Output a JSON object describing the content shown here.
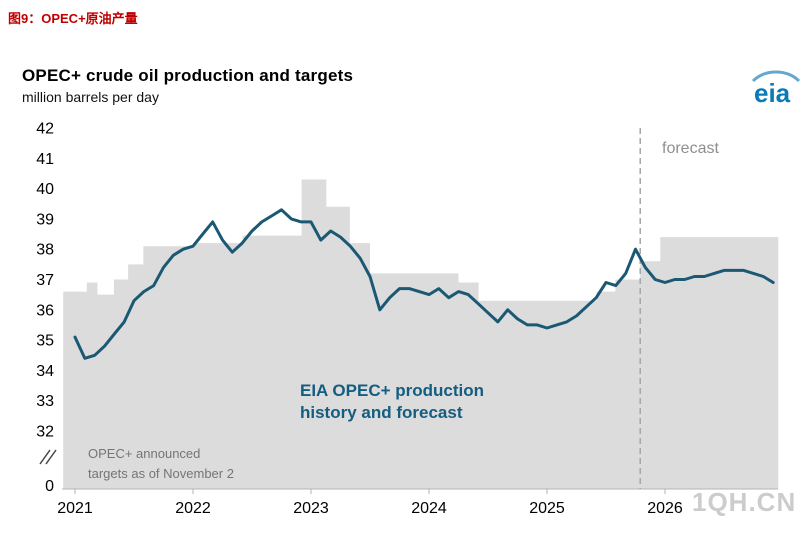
{
  "page": {
    "header": "图9：OPEC+原油产量",
    "watermark": "1QH.CN"
  },
  "branding": {
    "logo_text": "eia"
  },
  "colors": {
    "header_red": "#c00000",
    "production_line": "#1b5873",
    "targets_area": "#dcdcdc",
    "annotation_production": "#135d80",
    "annotation_targets": "#757575",
    "forecast_line": "#a6a6a6",
    "forecast_label": "#8f8f8f",
    "axis": "#b3b3b3",
    "tick_text": "#000000",
    "logo_blue": "#0a7ab8",
    "logo_swoosh": "#63a8cf",
    "watermark": "#cccccc"
  },
  "chart_data": {
    "type": "line",
    "title": "OPEC+ crude oil production and targets",
    "subtitle_unit": "million barrels per day",
    "xlabel": "",
    "ylabel": "million barrels per day",
    "x_ticks": [
      2021,
      2022,
      2023,
      2024,
      2025,
      2026
    ],
    "y_ticks": [
      42,
      41,
      40,
      39,
      38,
      37,
      36,
      35,
      34,
      33,
      32
    ],
    "y_break_label": "0",
    "ylim": [
      32,
      42
    ],
    "xlim": [
      2020.9,
      2026.96
    ],
    "grid": false,
    "legend": "none (in-chart annotations)",
    "forecast_start_x": 2025.79,
    "annotations": {
      "forecast": "forecast",
      "production": [
        "EIA OPEC+ production",
        "history and forecast"
      ],
      "targets": [
        "OPEC+ announced",
        "targets as of November 2"
      ]
    },
    "series": [
      {
        "name": "OPEC+ announced targets as of November 2",
        "type": "step-area",
        "color": "#dcdcdc",
        "points": [
          [
            2020.9,
            36.6
          ],
          [
            2021.1,
            36.9
          ],
          [
            2021.19,
            36.5
          ],
          [
            2021.33,
            37.0
          ],
          [
            2021.45,
            37.5
          ],
          [
            2021.58,
            38.1
          ],
          [
            2022.0,
            38.2
          ],
          [
            2022.42,
            38.45
          ],
          [
            2022.92,
            40.3
          ],
          [
            2023.13,
            39.4
          ],
          [
            2023.33,
            38.2
          ],
          [
            2023.5,
            37.2
          ],
          [
            2024.25,
            36.9
          ],
          [
            2024.42,
            36.3
          ],
          [
            2025.42,
            36.6
          ],
          [
            2025.58,
            37.0
          ],
          [
            2025.79,
            37.6
          ],
          [
            2025.96,
            38.4
          ],
          [
            2026.96,
            38.4
          ]
        ]
      },
      {
        "name": "EIA OPEC+ production history and forecast",
        "type": "line",
        "color": "#1b5873",
        "x_start_year": 2021,
        "x_step_months": 1,
        "values": [
          35.1,
          34.4,
          34.5,
          34.8,
          35.2,
          35.6,
          36.3,
          36.6,
          36.8,
          37.4,
          37.8,
          38.0,
          38.1,
          38.5,
          38.9,
          38.3,
          37.9,
          38.2,
          38.6,
          38.9,
          39.1,
          39.3,
          39.0,
          38.9,
          38.9,
          38.3,
          38.6,
          38.4,
          38.1,
          37.7,
          37.1,
          36.0,
          36.4,
          36.7,
          36.7,
          36.6,
          36.5,
          36.7,
          36.4,
          36.6,
          36.5,
          36.2,
          35.9,
          35.6,
          36.0,
          35.7,
          35.5,
          35.5,
          35.4,
          35.5,
          35.6,
          35.8,
          36.1,
          36.4,
          36.9,
          36.8,
          37.2,
          38.0,
          37.4,
          37.0,
          36.9,
          37.0,
          37.0,
          37.1,
          37.1,
          37.2,
          37.3,
          37.3,
          37.3,
          37.2,
          37.1,
          36.9
        ]
      }
    ]
  }
}
